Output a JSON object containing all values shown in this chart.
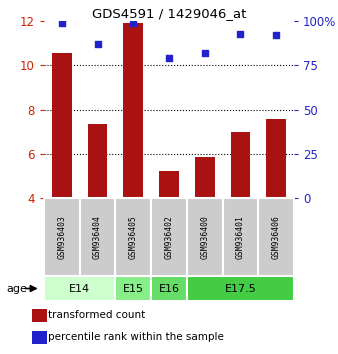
{
  "title": "GDS4591 / 1429046_at",
  "samples": [
    "GSM936403",
    "GSM936404",
    "GSM936405",
    "GSM936402",
    "GSM936400",
    "GSM936401",
    "GSM936406"
  ],
  "transformed_count": [
    10.55,
    7.35,
    11.9,
    5.25,
    5.85,
    7.0,
    7.6
  ],
  "percentile_rank": [
    99,
    87,
    99,
    79,
    82,
    93,
    92
  ],
  "ylim_left": [
    4,
    12
  ],
  "ylim_right": [
    0,
    100
  ],
  "left_yticks": [
    4,
    6,
    8,
    10,
    12
  ],
  "right_yticks": [
    0,
    25,
    50,
    75,
    100
  ],
  "right_yticklabels": [
    "0",
    "25",
    "50",
    "75",
    "100%"
  ],
  "bar_color": "#aa1111",
  "dot_color": "#2222cc",
  "bar_bottom": 4,
  "age_groups": [
    {
      "label": "E14",
      "spans": [
        0,
        2
      ],
      "color": "#ccffcc"
    },
    {
      "label": "E15",
      "spans": [
        2,
        3
      ],
      "color": "#88ee88"
    },
    {
      "label": "E16",
      "spans": [
        3,
        4
      ],
      "color": "#66dd66"
    },
    {
      "label": "E17.5",
      "spans": [
        4,
        7
      ],
      "color": "#44cc44"
    }
  ],
  "sample_box_color": "#cccccc",
  "legend_red_label": "transformed count",
  "legend_blue_label": "percentile rank within the sample",
  "age_label": "age",
  "left_ylabel_color": "#cc2200",
  "right_ylabel_color": "#2222cc",
  "grid_yticks": [
    6,
    8,
    10
  ]
}
